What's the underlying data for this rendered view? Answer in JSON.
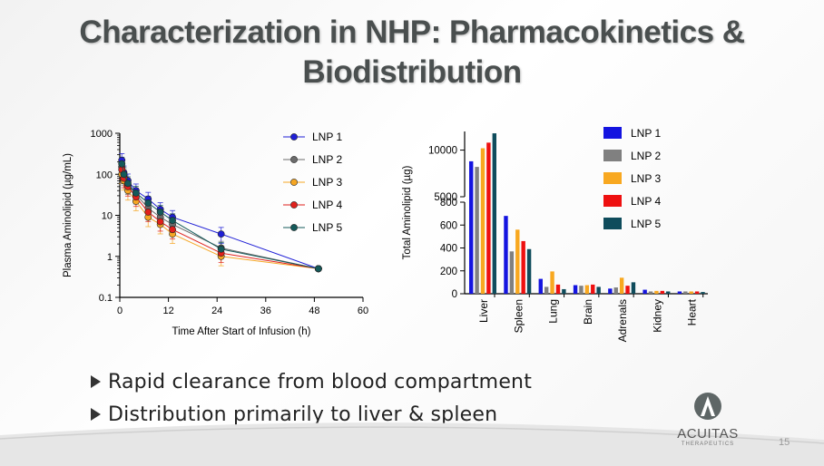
{
  "slide": {
    "title_line1": "Characterization in NHP: Pharmacokinetics &",
    "title_line2": "Biodistribution",
    "bullets": [
      "Rapid clearance from blood compartment",
      "Distribution primarily to liver & spleen"
    ],
    "logo": {
      "name": "ACUITAS",
      "sub": "THERAPEUTICS"
    },
    "page_number": "15"
  },
  "chart_data": [
    {
      "type": "line",
      "scale": "log",
      "xlabel": "Time After Start of Infusion (h)",
      "ylabel": "Plasma Aminolipid (µg/mL)",
      "xlim": [
        0,
        60
      ],
      "ylim": [
        0.1,
        1000
      ],
      "xticks": [
        0,
        12,
        24,
        36,
        48,
        60
      ],
      "yticks": [
        0.1,
        1,
        10,
        100,
        1000
      ],
      "ytick_labels": [
        "0.1",
        "1",
        "10",
        "100",
        "1000"
      ],
      "x": [
        0.5,
        1,
        2,
        4,
        7,
        10,
        13,
        25,
        49
      ],
      "series": [
        {
          "name": "LNP 1",
          "color": "#1f1fd6",
          "values": [
            220,
            110,
            70,
            40,
            25,
            14,
            9,
            3.5,
            0.5
          ]
        },
        {
          "name": "LNP 2",
          "color": "#6b6b6b",
          "values": [
            150,
            90,
            55,
            32,
            15,
            9,
            6,
            1.6,
            0.5
          ]
        },
        {
          "name": "LNP 3",
          "color": "#f5a623",
          "values": [
            100,
            70,
            40,
            22,
            9,
            6,
            3.5,
            1.0,
            0.5
          ]
        },
        {
          "name": "LNP 4",
          "color": "#e0201c",
          "values": [
            130,
            80,
            50,
            28,
            12,
            7,
            4.5,
            1.2,
            0.5
          ]
        },
        {
          "name": "LNP 5",
          "color": "#145a5a",
          "values": [
            180,
            100,
            60,
            35,
            20,
            12,
            7.5,
            1.5,
            0.5
          ]
        }
      ]
    },
    {
      "type": "bar",
      "ylabel": "Total Aminolipid (µg)",
      "categories": [
        "Liver",
        "Spleen",
        "Lung",
        "Brain",
        "Adrenals",
        "Kidney",
        "Heart"
      ],
      "yticks": [
        0,
        200,
        400,
        600,
        800,
        5000,
        10000
      ],
      "ytick_labels": [
        "0",
        "200",
        "400",
        "600",
        "800",
        "5000",
        "10000"
      ],
      "axis_break": [
        800,
        5000
      ],
      "series": [
        {
          "name": "LNP 1",
          "color": "#1414e0",
          "values": [
            8800,
            680,
            130,
            75,
            45,
            35,
            20
          ]
        },
        {
          "name": "LNP 2",
          "color": "#808080",
          "values": [
            8200,
            370,
            60,
            70,
            55,
            20,
            20
          ]
        },
        {
          "name": "LNP 3",
          "color": "#f8a820",
          "values": [
            10200,
            560,
            195,
            75,
            140,
            25,
            20
          ]
        },
        {
          "name": "LNP 4",
          "color": "#ee1010",
          "values": [
            10800,
            460,
            80,
            80,
            70,
            25,
            20
          ]
        },
        {
          "name": "LNP 5",
          "color": "#0f4c5c",
          "values": [
            11800,
            390,
            40,
            60,
            100,
            20,
            15
          ]
        }
      ]
    }
  ]
}
